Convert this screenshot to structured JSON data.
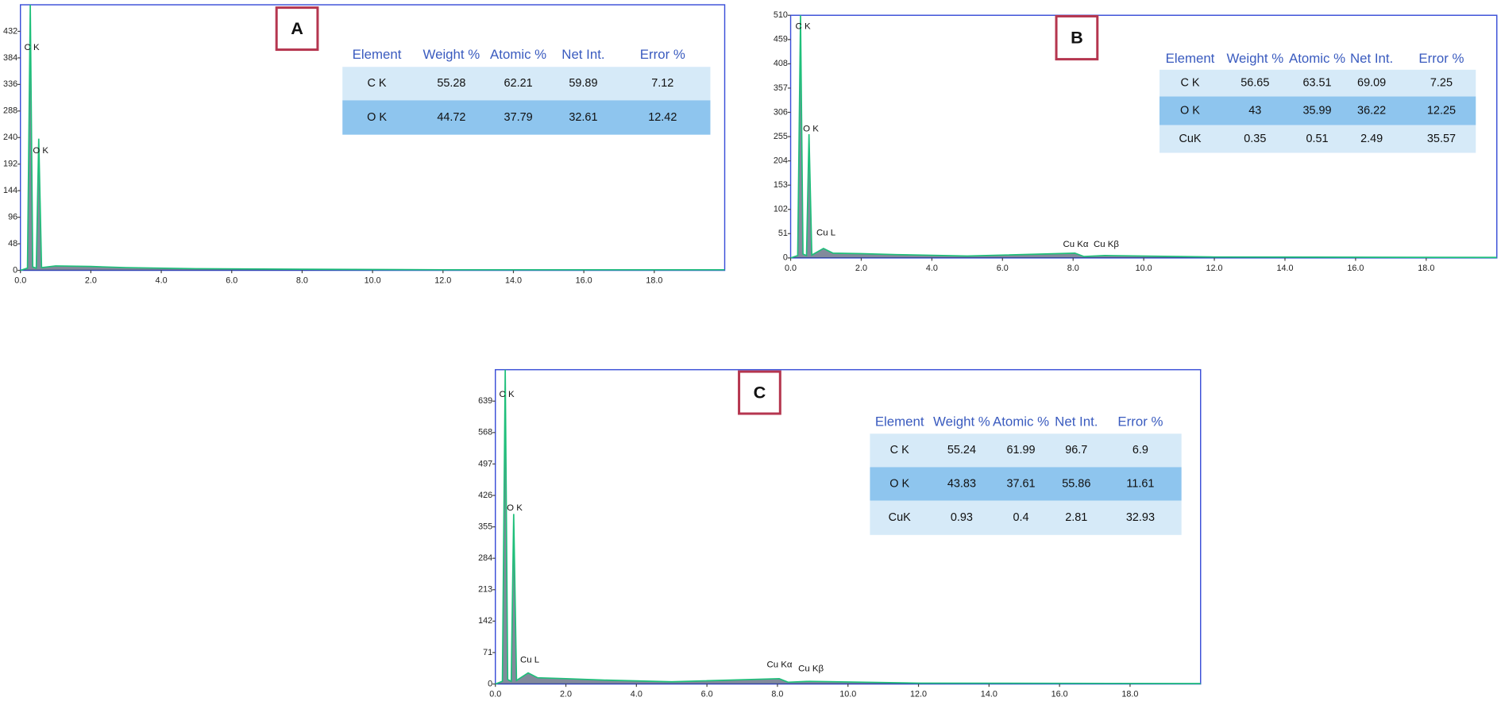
{
  "chart_data": [
    {
      "type": "line",
      "panel": "A",
      "annotations": [
        "C K",
        "O K"
      ],
      "x": [
        0,
        0.2,
        0.28,
        0.35,
        0.45,
        0.52,
        0.6,
        1.0,
        2.0,
        3.0,
        5.0,
        8.0,
        12.0,
        20.0
      ],
      "series": [
        {
          "name": "spectrum",
          "color": "#1fbf7a",
          "values": [
            0,
            4,
            480,
            6,
            4,
            238,
            5,
            8,
            7,
            5,
            3,
            2,
            1,
            1
          ]
        }
      ],
      "xlim": [
        0,
        20
      ],
      "ylim": [
        0,
        480
      ],
      "xticks": [
        {
          "value": 0,
          "label": "0.0"
        },
        {
          "value": 2,
          "label": "2.0"
        },
        {
          "value": 4,
          "label": "4.0"
        },
        {
          "value": 6,
          "label": "6.0"
        },
        {
          "value": 8,
          "label": "8.0"
        },
        {
          "value": 10,
          "label": "10.0"
        },
        {
          "value": 12,
          "label": "12.0"
        },
        {
          "value": 14,
          "label": "14.0"
        },
        {
          "value": 16,
          "label": "16.0"
        },
        {
          "value": 18,
          "label": "18.0"
        }
      ],
      "yticks": [
        0,
        48,
        96,
        144,
        192,
        240,
        288,
        336,
        384,
        432
      ],
      "table": {
        "header": [
          "Element",
          "Weight %",
          "Atomic %",
          "Net Int.",
          "Error %"
        ],
        "rows": [
          [
            "C K",
            "55.28",
            "62.21",
            "59.89",
            "7.12"
          ],
          [
            "O K",
            "44.72",
            "37.79",
            "32.61",
            "12.42"
          ]
        ]
      }
    },
    {
      "type": "line",
      "panel": "B",
      "annotations": [
        "C K",
        "O K",
        "Cu L",
        "Cu Kα",
        "Cu Kβ"
      ],
      "x": [
        0,
        0.2,
        0.28,
        0.35,
        0.45,
        0.52,
        0.6,
        0.93,
        1.2,
        2.0,
        3.0,
        5.0,
        8.05,
        8.3,
        8.9,
        12.0,
        20.0
      ],
      "series": [
        {
          "name": "spectrum",
          "color": "#1fbf7a",
          "values": [
            0,
            5,
            510,
            8,
            5,
            260,
            6,
            20,
            10,
            9,
            7,
            4,
            10,
            3,
            5,
            2,
            1
          ]
        }
      ],
      "xlim": [
        0,
        20
      ],
      "ylim": [
        0,
        510
      ],
      "xticks": [
        {
          "value": 0,
          "label": "0.0"
        },
        {
          "value": 2,
          "label": "2.0"
        },
        {
          "value": 4,
          "label": "4.0"
        },
        {
          "value": 6,
          "label": "6.0"
        },
        {
          "value": 8,
          "label": "8.0"
        },
        {
          "value": 10,
          "label": "10.0"
        },
        {
          "value": 12,
          "label": "12.0"
        },
        {
          "value": 14,
          "label": "14.0"
        },
        {
          "value": 16,
          "label": "16.0"
        },
        {
          "value": 18,
          "label": "18.0"
        }
      ],
      "yticks": [
        0,
        51,
        102,
        153,
        204,
        255,
        306,
        357,
        408,
        459,
        510
      ],
      "table": {
        "header": [
          "Element",
          "Weight %",
          "Atomic %",
          "Net Int.",
          "Error %"
        ],
        "rows": [
          [
            "C K",
            "56.65",
            "63.51",
            "69.09",
            "7.25"
          ],
          [
            "O K",
            "43",
            "35.99",
            "36.22",
            "12.25"
          ],
          [
            "CuK",
            "0.35",
            "0.51",
            "2.49",
            "35.57"
          ]
        ]
      }
    },
    {
      "type": "line",
      "panel": "C",
      "annotations": [
        "C K",
        "O K",
        "Cu L",
        "Cu Kα",
        "Cu Kβ"
      ],
      "x": [
        0,
        0.2,
        0.28,
        0.35,
        0.45,
        0.52,
        0.6,
        0.93,
        1.2,
        2.0,
        3.0,
        5.0,
        8.05,
        8.3,
        8.9,
        12.0,
        20.0
      ],
      "series": [
        {
          "name": "spectrum",
          "color": "#1fbf7a",
          "values": [
            0,
            6,
            710,
            10,
            6,
            384,
            8,
            25,
            14,
            12,
            9,
            5,
            12,
            4,
            6,
            2,
            1
          ]
        }
      ],
      "xlim": [
        0,
        20
      ],
      "ylim": [
        0,
        710
      ],
      "xticks": [
        {
          "value": 0,
          "label": "0.0"
        },
        {
          "value": 2,
          "label": "2.0"
        },
        {
          "value": 4,
          "label": "4.0"
        },
        {
          "value": 6,
          "label": "6.0"
        },
        {
          "value": 8,
          "label": "8.0"
        },
        {
          "value": 10,
          "label": "10.0"
        },
        {
          "value": 12,
          "label": "12.0"
        },
        {
          "value": 14,
          "label": "14.0"
        },
        {
          "value": 16,
          "label": "16.0"
        },
        {
          "value": 18,
          "label": "18.0"
        }
      ],
      "yticks": [
        0,
        71,
        142,
        213,
        284,
        355,
        426,
        497,
        568,
        639
      ],
      "table": {
        "header": [
          "Element",
          "Weight %",
          "Atomic %",
          "Net Int.",
          "Error %"
        ],
        "rows": [
          [
            "C K",
            "55.24",
            "61.99",
            "96.7",
            "6.9"
          ],
          [
            "O K",
            "43.83",
            "37.61",
            "55.86",
            "11.61"
          ],
          [
            "CuK",
            "0.93",
            "0.4",
            "2.81",
            "32.93"
          ]
        ]
      }
    }
  ]
}
